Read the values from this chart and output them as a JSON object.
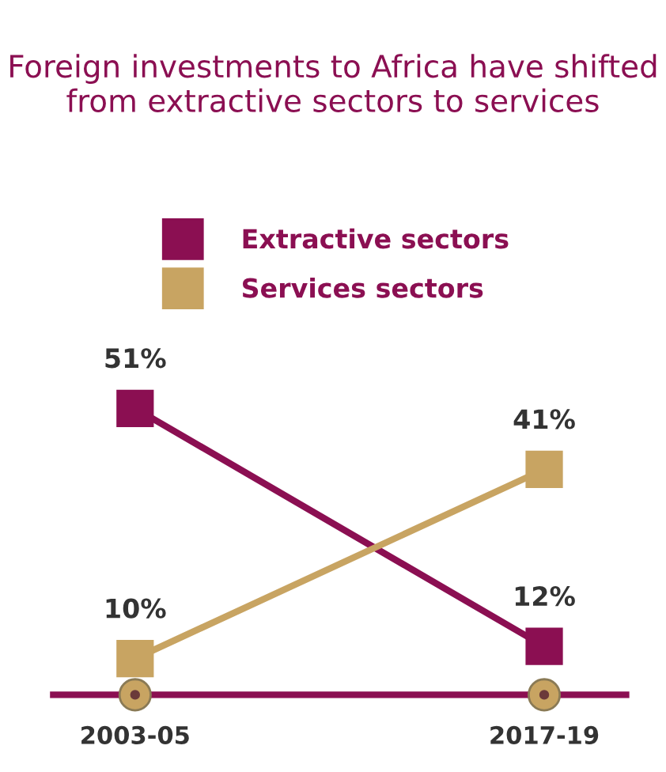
{
  "chart_data": {
    "type": "line",
    "title": "Foreign investments to Africa have shifted from extractive sectors to services",
    "categories": [
      "2003-05",
      "2017-19"
    ],
    "series": [
      {
        "name": "Extractive sectors",
        "color": "#8b0f52",
        "values": [
          51,
          12
        ],
        "value_labels": [
          "51%",
          "12%"
        ]
      },
      {
        "name": "Services sectors",
        "color": "#c8a462",
        "values": [
          10,
          41
        ],
        "value_labels": [
          "10%",
          "41%"
        ]
      }
    ],
    "marker": "square",
    "line_style": "solid",
    "legend": "top",
    "grid": false,
    "tick_labels": "x"
  }
}
